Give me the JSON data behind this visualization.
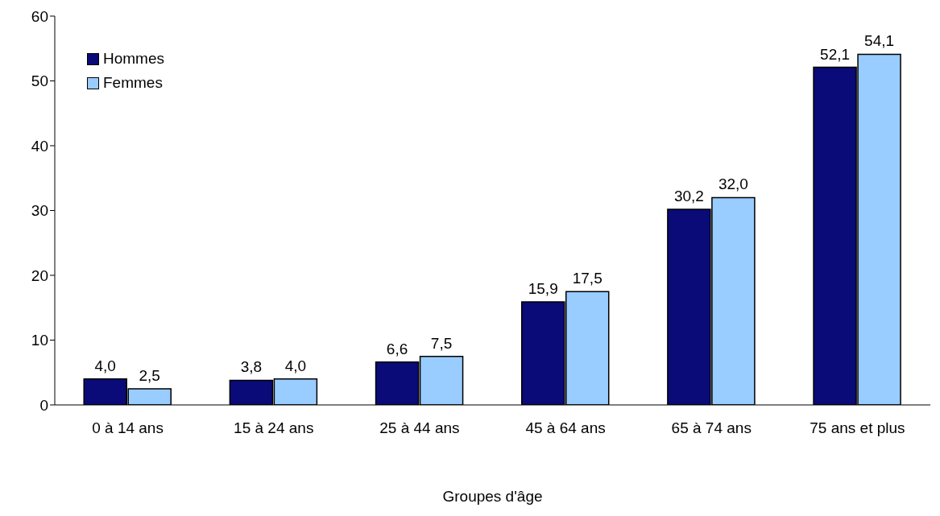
{
  "chart_data": {
    "type": "bar",
    "xlabel": "Groupes d'âge",
    "categories": [
      "0 à 14 ans",
      "15 à 24 ans",
      "25 à 44 ans",
      "45 à 64 ans",
      "65 à 74 ans",
      "75 ans et plus"
    ],
    "series": [
      {
        "name": "Hommes",
        "color": "#0a0a78",
        "values": [
          4.0,
          3.8,
          6.6,
          15.9,
          30.2,
          52.1
        ],
        "value_labels": [
          "4,0",
          "3,8",
          "6,6",
          "15,9",
          "30,2",
          "52,1"
        ]
      },
      {
        "name": "Femmes",
        "color": "#99ccff",
        "values": [
          2.5,
          4.0,
          7.5,
          17.5,
          32.0,
          54.1
        ],
        "value_labels": [
          "2,5",
          "4,0",
          "7,5",
          "17,5",
          "32,0",
          "54,1"
        ]
      }
    ],
    "ylim": [
      0,
      60
    ],
    "yticks": [
      0,
      10,
      20,
      30,
      40,
      50,
      60
    ],
    "grid": false,
    "legend": "top left"
  }
}
